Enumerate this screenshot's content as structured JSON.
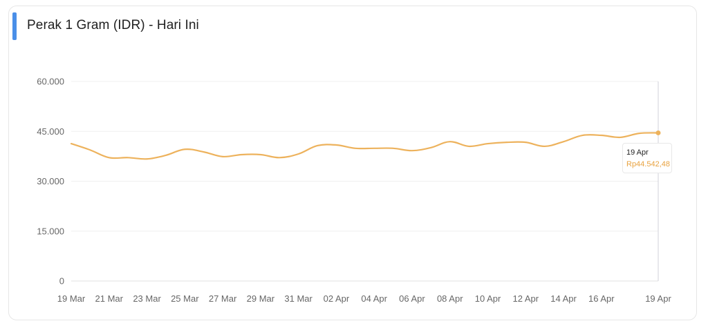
{
  "header": {
    "title": "Perak 1 Gram (IDR) - Hari Ini",
    "accent_color": "#4a8fe8"
  },
  "tooltip": {
    "date": "19 Apr",
    "value": "Rp44.542,48",
    "value_color": "#e8a23f"
  },
  "chart_data": {
    "type": "line",
    "title": "Perak 1 Gram (IDR) - Hari Ini",
    "xlabel": "",
    "ylabel": "",
    "ylim": [
      0,
      60000
    ],
    "grid": true,
    "legend": "none",
    "line_color": "#edb25c",
    "y_ticks": [
      0,
      15000,
      30000,
      45000,
      60000
    ],
    "y_tick_labels": [
      "0",
      "15.000",
      "30.000",
      "45.000",
      "60.000"
    ],
    "x_tick_labels": [
      "19 Mar",
      "21 Mar",
      "23 Mar",
      "25 Mar",
      "27 Mar",
      "29 Mar",
      "31 Mar",
      "02 Apr",
      "04 Apr",
      "06 Apr",
      "08 Apr",
      "10 Apr",
      "12 Apr",
      "14 Apr",
      "16 Apr",
      "19 Apr"
    ],
    "x": [
      "19 Mar",
      "20 Mar",
      "21 Mar",
      "22 Mar",
      "23 Mar",
      "24 Mar",
      "25 Mar",
      "26 Mar",
      "27 Mar",
      "28 Mar",
      "29 Mar",
      "30 Mar",
      "31 Mar",
      "01 Apr",
      "02 Apr",
      "03 Apr",
      "04 Apr",
      "05 Apr",
      "06 Apr",
      "07 Apr",
      "08 Apr",
      "09 Apr",
      "10 Apr",
      "11 Apr",
      "12 Apr",
      "13 Apr",
      "14 Apr",
      "15 Apr",
      "16 Apr",
      "17 Apr",
      "18 Apr",
      "19 Apr"
    ],
    "series": [
      {
        "name": "Perak 1 Gram (IDR)",
        "values": [
          41300,
          39400,
          37100,
          37100,
          36700,
          37800,
          39600,
          38800,
          37400,
          38000,
          38000,
          37100,
          38200,
          40700,
          40900,
          39900,
          39900,
          39900,
          39200,
          40100,
          41900,
          40500,
          41300,
          41700,
          41700,
          40500,
          41900,
          43800,
          43800,
          43200,
          44400,
          44542.48
        ]
      }
    ],
    "highlighted_point": {
      "x": "19 Apr",
      "value": 44542.48
    }
  }
}
